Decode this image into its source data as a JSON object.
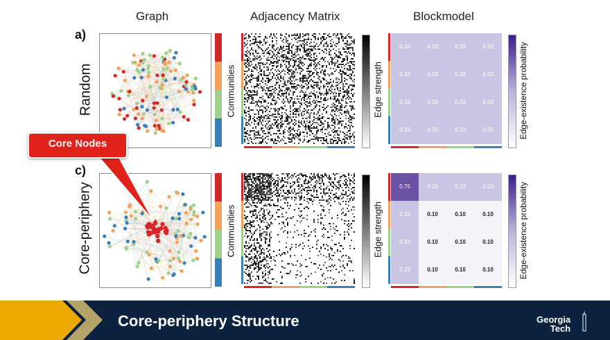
{
  "columns": {
    "graph": "Graph",
    "adjacency": "Adjacency Matrix",
    "blockmodel": "Blockmodel"
  },
  "rows": [
    {
      "panel": "a)",
      "label": "Random"
    },
    {
      "panel": "c)",
      "label": "Core-periphery"
    }
  ],
  "colorbar_labels": {
    "communities": "Communities",
    "edge_strength": "Edge strength",
    "edge_prob": "Edge-existence probability"
  },
  "community_colors": [
    "#d62728",
    "#f2a25c",
    "#9fd08c",
    "#3a7fb8"
  ],
  "blockmodel_random": [
    [
      "0.33",
      "0.33",
      "0.33",
      "0.33"
    ],
    [
      "0.33",
      "0.33",
      "0.33",
      "0.33"
    ],
    [
      "0.33",
      "0.33",
      "0.33",
      "0.33"
    ],
    [
      "0.33",
      "0.33",
      "0.33",
      "0.33"
    ]
  ],
  "blockmodel_core": [
    [
      "0.75",
      "0.33",
      "0.33",
      "0.33"
    ],
    [
      "0.33",
      "0.10",
      "0.10",
      "0.10"
    ],
    [
      "0.33",
      "0.10",
      "0.10",
      "0.10"
    ],
    [
      "0.33",
      "0.10",
      "0.10",
      "0.10"
    ]
  ],
  "callout": {
    "text": "Core Nodes"
  },
  "footer": {
    "title": "Core-periphery Structure",
    "logo_line1": "Georgia",
    "logo_line2": "Tech"
  }
}
